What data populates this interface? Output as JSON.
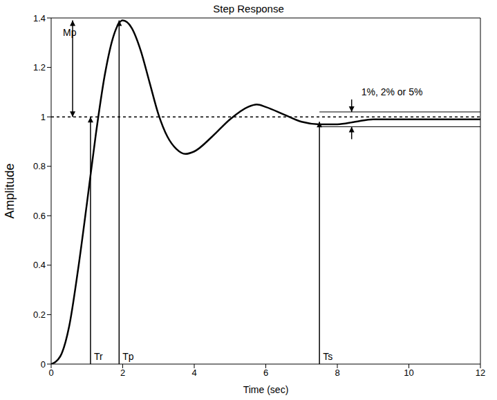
{
  "chart_data": {
    "type": "line",
    "title": "Step Response",
    "x_label": "Time (sec)",
    "y_label": "Amplitude",
    "x": [
      0,
      0.25,
      0.5,
      0.75,
      1.0,
      1.25,
      1.5,
      1.75,
      2.0,
      2.25,
      2.5,
      2.75,
      3.0,
      3.25,
      3.5,
      3.75,
      4.0,
      4.5,
      5.0,
      5.5,
      5.75,
      6.0,
      6.5,
      7.0,
      7.5,
      8.0,
      8.5,
      9.0,
      9.5,
      10.0,
      10.5,
      11.0,
      11.5,
      12.0
    ],
    "values": [
      0,
      0.03,
      0.15,
      0.38,
      0.65,
      0.93,
      1.17,
      1.33,
      1.39,
      1.36,
      1.27,
      1.14,
      1.01,
      0.92,
      0.87,
      0.85,
      0.86,
      0.92,
      0.99,
      1.04,
      1.05,
      1.04,
      1.01,
      0.98,
      0.97,
      0.97,
      0.98,
      0.99,
      0.99,
      0.99,
      0.99,
      0.99,
      0.99,
      0.99
    ],
    "color": "#000000",
    "xlim": [
      0,
      12
    ],
    "ylim": [
      0,
      1.4
    ],
    "xticks": [
      0,
      2,
      4,
      6,
      8,
      10,
      12
    ],
    "yticks": [
      0,
      0.2,
      0.4,
      0.6,
      0.8,
      1,
      1.2,
      1.4
    ],
    "grid": false,
    "reference": 1,
    "markers": [
      {
        "label": "Tr",
        "x": 1.1,
        "y": 1.0
      },
      {
        "label": "Tp",
        "x": 1.9,
        "y": 1.39
      },
      {
        "label": "Ts",
        "x": 7.5,
        "y": 0.98
      }
    ],
    "overshoot": {
      "label": "Mp",
      "x": 0.6,
      "from": 1,
      "to": 1.39
    },
    "band": {
      "label": "1%, 2% or 5%",
      "from_x": 7.5,
      "label_x": 8.4,
      "lower": 0.96,
      "upper": 1.02
    }
  }
}
